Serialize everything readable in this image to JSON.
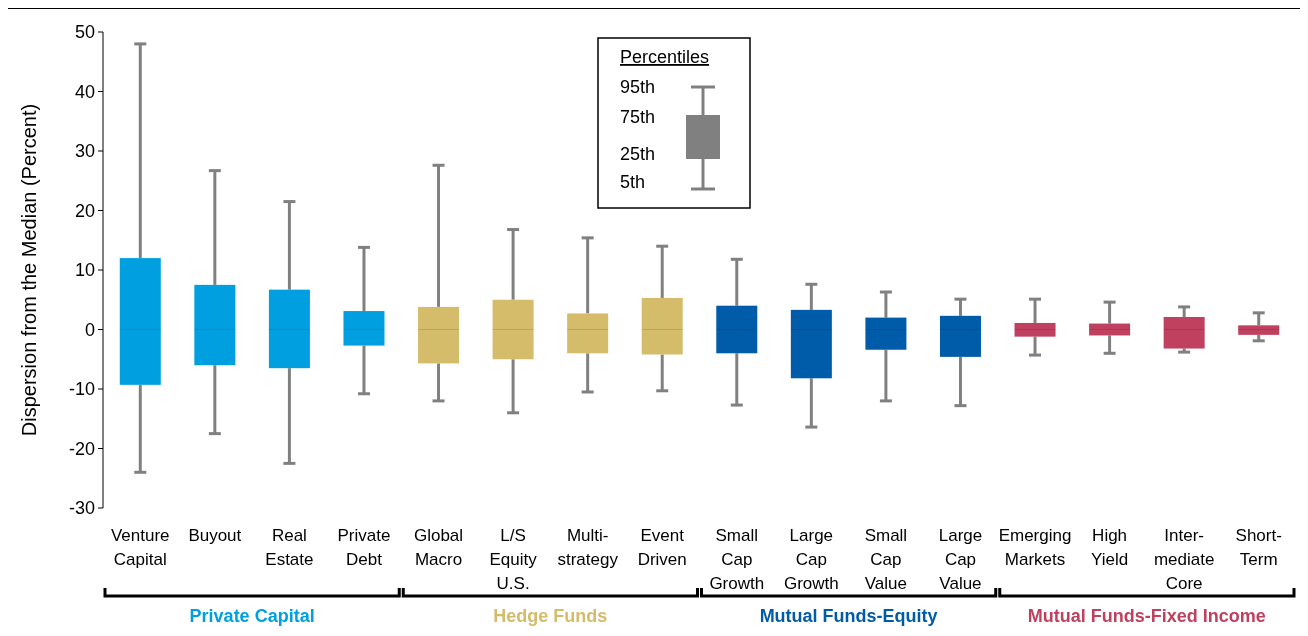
{
  "chart_data": {
    "type": "box",
    "ylabel": "Dispersion from the Median (Percent)",
    "categories": [
      "Venture\nCapital",
      "Buyout",
      "Real\nEstate",
      "Private\nDebt",
      "Global\nMacro",
      "L/S\nEquity\nU.S.",
      "Multi-\nstrategy",
      "Event\nDriven",
      "Small\nCap\nGrowth",
      "Large\nCap\nGrowth",
      "Small\nCap\nValue",
      "Large\nCap\nValue",
      "Emerging\nMarkets",
      "High\nYield",
      "Inter-\nmediate\nCore",
      "Short-\nTerm"
    ],
    "ylim": [
      -30,
      50
    ],
    "yticks": [
      -30,
      -20,
      -10,
      0,
      10,
      20,
      30,
      40,
      50
    ],
    "grid": false,
    "legend": "bottom",
    "legend_title": "Percentiles",
    "annotations": [
      "95th",
      "75th",
      "25th",
      "5th"
    ],
    "series": [
      {
        "name": "Private Capital",
        "color": "#00a0e0",
        "boxes": [
          {
            "low": -24,
            "q1": -9.3,
            "median": 0,
            "q3": 12,
            "high": 48
          },
          {
            "low": -17.5,
            "q1": -6,
            "median": 0,
            "q3": 7.5,
            "high": 26.7
          },
          {
            "low": -22.5,
            "q1": -6.5,
            "median": 0,
            "q3": 6.7,
            "high": 21.5
          },
          {
            "low": -10.8,
            "q1": -2.7,
            "median": 0,
            "q3": 3.1,
            "high": 13.8
          },
          null,
          null,
          null,
          null,
          null,
          null,
          null,
          null,
          null,
          null,
          null,
          null
        ]
      },
      {
        "name": "Hedge Funds",
        "color": "#d4bc6a",
        "boxes": [
          null,
          null,
          null,
          null,
          {
            "low": -12,
            "q1": -5.7,
            "median": 0,
            "q3": 3.8,
            "high": 27.6
          },
          {
            "low": -14,
            "q1": -5,
            "median": 0,
            "q3": 5,
            "high": 16.8
          },
          {
            "low": -10.5,
            "q1": -4,
            "median": 0,
            "q3": 2.7,
            "high": 15.4
          },
          {
            "low": -10.3,
            "q1": -4.2,
            "median": 0,
            "q3": 5.3,
            "high": 14
          },
          null,
          null,
          null,
          null,
          null,
          null,
          null,
          null
        ]
      },
      {
        "name": "Mutual Funds-Equity",
        "color": "#005ca8",
        "boxes": [
          null,
          null,
          null,
          null,
          null,
          null,
          null,
          null,
          {
            "low": -12.7,
            "q1": -4,
            "median": 0,
            "q3": 4,
            "high": 11.8
          },
          {
            "low": -16.4,
            "q1": -8.2,
            "median": 0,
            "q3": 3.3,
            "high": 7.6
          },
          {
            "low": -12,
            "q1": -3.4,
            "median": 0,
            "q3": 2,
            "high": 6.3
          },
          {
            "low": -12.8,
            "q1": -4.6,
            "median": 0,
            "q3": 2.3,
            "high": 5.1
          },
          null,
          null,
          null,
          null
        ]
      },
      {
        "name": "Mutual Funds-Fixed Income",
        "color": "#c0405f",
        "boxes": [
          null,
          null,
          null,
          null,
          null,
          null,
          null,
          null,
          null,
          null,
          null,
          null,
          {
            "low": -4.3,
            "q1": -1.2,
            "median": 0,
            "q3": 1.1,
            "high": 5.1
          },
          {
            "low": -4,
            "q1": -1,
            "median": 0,
            "q3": 1,
            "high": 4.6
          },
          {
            "low": -3.8,
            "q1": -3.2,
            "median": 0,
            "q3": 2.1,
            "high": 3.8
          },
          {
            "low": -1.9,
            "q1": -0.9,
            "median": 0,
            "q3": 0.7,
            "high": 2.8
          }
        ]
      }
    ]
  }
}
